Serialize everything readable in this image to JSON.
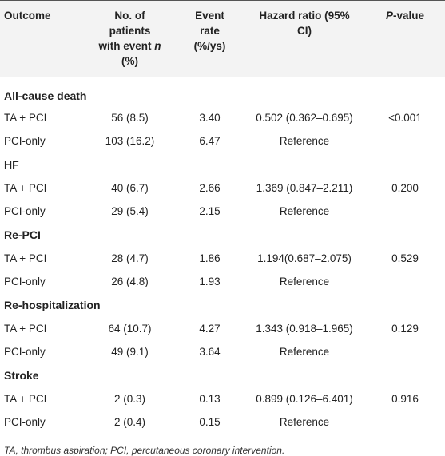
{
  "headers": {
    "outcome": "Outcome",
    "patients_line1": "No. of",
    "patients_line2": "patients",
    "patients_line3": "with event ",
    "patients_line3_italic": "n",
    "patients_line4": "(%)",
    "event_rate_line1": "Event",
    "event_rate_line2": "rate",
    "event_rate_line3": "(%/ys)",
    "hr_line1": "Hazard ratio (95%",
    "hr_line2": "CI)",
    "pvalue_italic": "P",
    "pvalue_rest": "-value"
  },
  "groups": [
    {
      "title": "All-cause death",
      "rows": [
        {
          "label": "TA + PCI",
          "patients": "56 (8.5)",
          "rate": "3.40",
          "hr": "0.502 (0.362–0.695)",
          "p": "<0.001"
        },
        {
          "label": "PCI-only",
          "patients": "103 (16.2)",
          "rate": "6.47",
          "hr": "Reference",
          "p": ""
        }
      ]
    },
    {
      "title": "HF",
      "rows": [
        {
          "label": "TA + PCI",
          "patients": "40 (6.7)",
          "rate": "2.66",
          "hr": "1.369 (0.847–2.211)",
          "p": "0.200"
        },
        {
          "label": "PCI-only",
          "patients": "29 (5.4)",
          "rate": "2.15",
          "hr": "Reference",
          "p": ""
        }
      ]
    },
    {
      "title": "Re-PCI",
      "rows": [
        {
          "label": "TA + PCI",
          "patients": "28 (4.7)",
          "rate": "1.86",
          "hr": "1.194(0.687–2.075)",
          "p": "0.529"
        },
        {
          "label": "PCI-only",
          "patients": "26 (4.8)",
          "rate": "1.93",
          "hr": "Reference",
          "p": ""
        }
      ]
    },
    {
      "title": "Re-hospitalization",
      "rows": [
        {
          "label": "TA + PCI",
          "patients": "64 (10.7)",
          "rate": "4.27",
          "hr": "1.343 (0.918–1.965)",
          "p": "0.129"
        },
        {
          "label": "PCI-only",
          "patients": "49 (9.1)",
          "rate": "3.64",
          "hr": "Reference",
          "p": ""
        }
      ]
    },
    {
      "title": "Stroke",
      "rows": [
        {
          "label": "TA + PCI",
          "patients": "2 (0.3)",
          "rate": "0.13",
          "hr": "0.899 (0.126–6.401)",
          "p": "0.916"
        },
        {
          "label": "PCI-only",
          "patients": "2 (0.4)",
          "rate": "0.15",
          "hr": "Reference",
          "p": ""
        }
      ]
    }
  ],
  "footnote": "TA, thrombus aspiration; PCI, percutaneous coronary intervention."
}
